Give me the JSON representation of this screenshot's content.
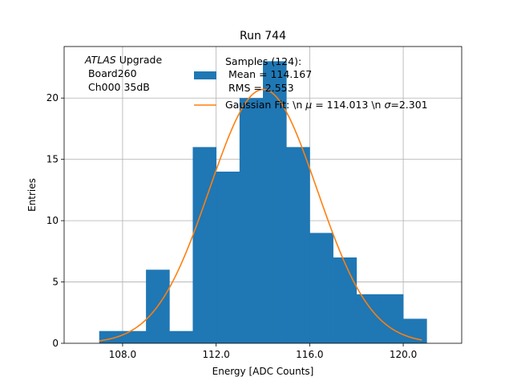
{
  "chart_data": {
    "type": "bar",
    "title": "Run 744",
    "xlabel": "Energy [ADC Counts]",
    "ylabel": "Entries",
    "xlim": [
      105.5,
      122.5
    ],
    "ylim": [
      0,
      24.2
    ],
    "x_ticks": [
      108.0,
      112.0,
      116.0,
      120.0
    ],
    "x_tick_labels": [
      "108.0",
      "112.0",
      "116.0",
      "120.0"
    ],
    "y_ticks": [
      0,
      5,
      10,
      15,
      20
    ],
    "y_tick_labels": [
      "0",
      "5",
      "10",
      "15",
      "20"
    ],
    "grid": true,
    "bar_color": "#1f77b4",
    "fit_color": "#ff7f0e",
    "histogram": {
      "bin_edges": [
        107.0,
        108.0,
        109.0,
        110.0,
        111.0,
        112.0,
        113.0,
        114.0,
        115.0,
        116.0,
        117.0,
        118.0,
        119.0,
        120.0,
        121.0
      ],
      "counts": [
        1,
        1,
        6,
        1,
        16,
        14,
        20,
        23,
        16,
        9,
        7,
        4,
        4,
        2
      ]
    },
    "gaussian_fit": {
      "mu": 114.013,
      "sigma": 2.301,
      "amplitude": 20.7,
      "x_range": [
        107.0,
        120.8
      ]
    },
    "legend": {
      "placement": "top-right",
      "entries": [
        {
          "kind": "patch",
          "lines": [
            "Samples (124):",
            " Mean = 114.167",
            " RMS = 2.553"
          ]
        },
        {
          "kind": "line",
          "lines": [
            "Gaussian Fit: \\n $\\mu$ = 114.013 \\n $\\sigma$=2.301"
          ],
          "parts": [
            {
              "text": "Gaussian Fit: \\n ",
              "italic": false
            },
            {
              "text": "μ",
              "italic": true
            },
            {
              "text": " = 114.013 \\n ",
              "italic": false
            },
            {
              "text": "σ",
              "italic": true
            },
            {
              "text": "=2.301",
              "italic": false
            }
          ]
        }
      ]
    },
    "annotation": {
      "italic_part": "ATLAS",
      "rest_first_line": " Upgrade",
      "lines": [
        " Board260",
        " Ch000 35dB"
      ]
    }
  }
}
